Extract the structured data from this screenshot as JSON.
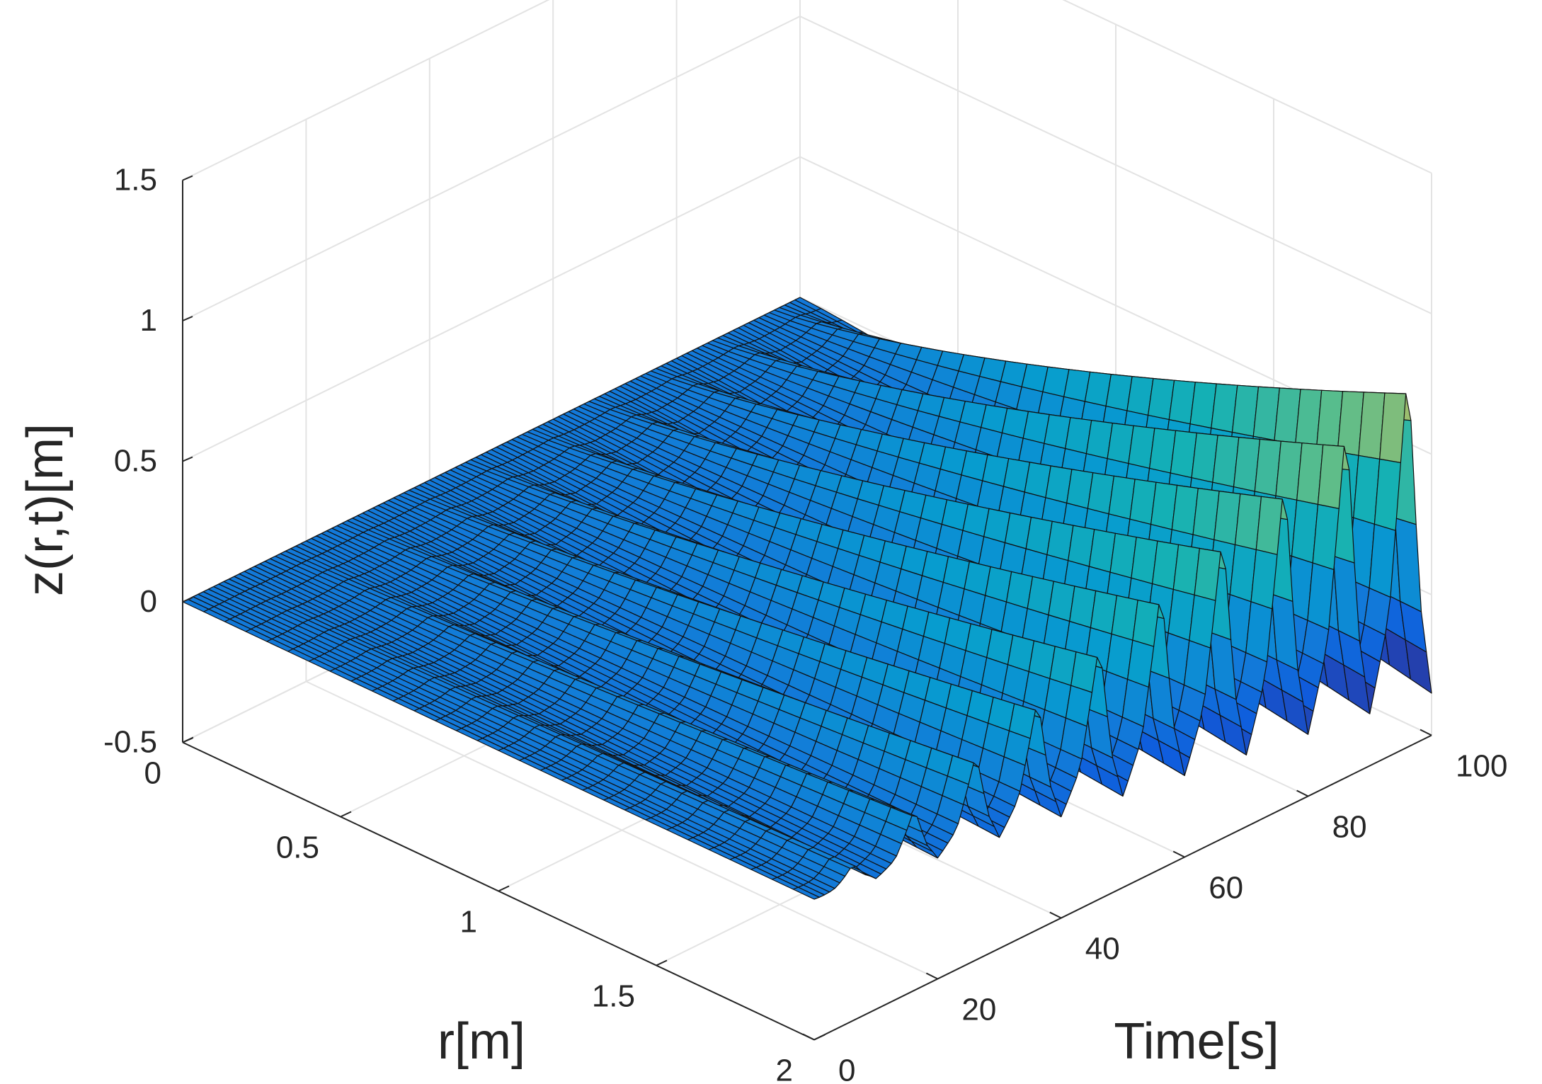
{
  "chart_data": {
    "type": "surface",
    "title": "",
    "xlabel": "r[m]",
    "ylabel": "Time[s]",
    "zlabel": "z(r,t)[m]",
    "xlim": [
      0,
      2
    ],
    "ylim": [
      0,
      100
    ],
    "zlim": [
      -0.5,
      1.5
    ],
    "x_ticks": [
      "0",
      "0.5",
      "1",
      "1.5",
      "2"
    ],
    "y_ticks": [
      "0",
      "20",
      "40",
      "60",
      "80",
      "100"
    ],
    "z_ticks": [
      "-0.5",
      "0",
      "0.5",
      "1",
      "1.5"
    ],
    "grid": true,
    "colormap": "parula",
    "surface_model": {
      "wave_period": 10,
      "amplitude_growth": "linear in t",
      "crest_max_approx": 0.9,
      "trough_min_approx": -0.35,
      "surface_shape": "oscillation grows with r, flat near r = 0"
    }
  }
}
